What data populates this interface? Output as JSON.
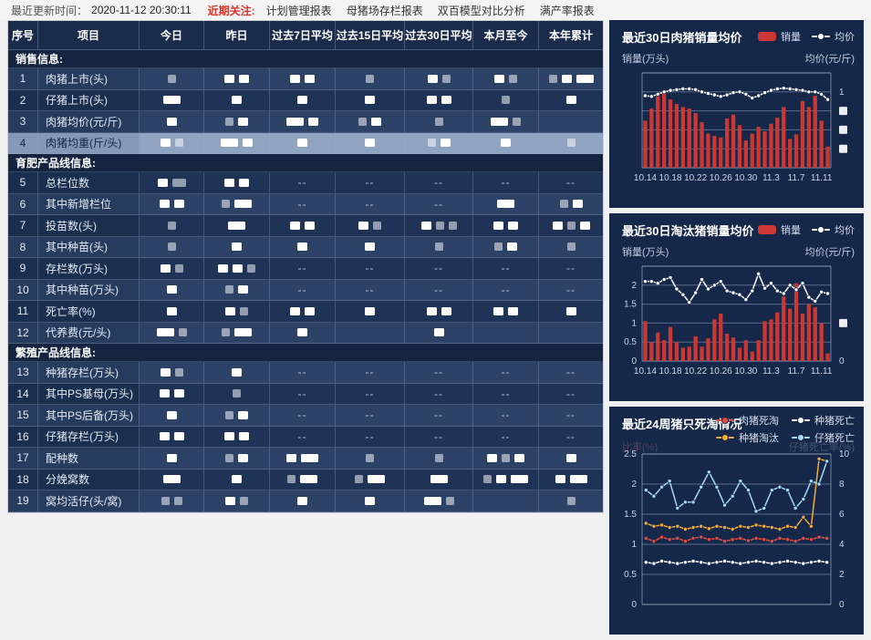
{
  "topbar": {
    "update_label": "最近更新时间：",
    "update_time": "2020-11-12 20:30:11",
    "focus_label": "近期关注:",
    "links": [
      "计划管理报表",
      "母猪场存栏报表",
      "双百模型对比分析",
      "满产率报表"
    ]
  },
  "table": {
    "headers": [
      "序号",
      "项目",
      "今日",
      "昨日",
      "过去7日平均",
      "过去15日平均",
      "过去30日平均",
      "本月至今",
      "本年累计"
    ],
    "sections": [
      {
        "title": "销售信息:",
        "rows": [
          {
            "no": "1",
            "name": "肉猪上市(头)",
            "tone": "light",
            "cells": [
              "g",
              "bb",
              "bb",
              "g",
              "bg",
              "bg",
              "gbB"
            ]
          },
          {
            "no": "2",
            "name": "仔猪上市(头)",
            "tone": "dark",
            "cells": [
              "B",
              "b",
              "b",
              "b",
              "bb",
              "g",
              "b"
            ]
          },
          {
            "no": "3",
            "name": "肉猪均价(元/斤)",
            "tone": "light",
            "cells": [
              "b",
              "gb",
              "Bb",
              "gb",
              "g",
              "Bg",
              ""
            ]
          },
          {
            "no": "4",
            "name": "肉猪均重(斤/头)",
            "tone": "sel",
            "selected": true,
            "cells": [
              "bg",
              "Bb",
              "b",
              "b",
              "gb",
              "b",
              "g"
            ]
          }
        ]
      },
      {
        "title": "育肥产品线信息:",
        "rows": [
          {
            "no": "5",
            "name": "总栏位数",
            "tone": "dark",
            "cells": [
              "bG",
              "bb",
              "--",
              "--",
              "--",
              "--",
              "--"
            ]
          },
          {
            "no": "6",
            "name": "其中新增栏位",
            "tone": "light",
            "cells": [
              "bb",
              "gB",
              "--",
              "--",
              "--",
              "B",
              "gb"
            ]
          },
          {
            "no": "7",
            "name": "投苗数(头)",
            "tone": "dark",
            "cells": [
              "g",
              "B",
              "bb",
              "bg",
              "bgg",
              "bb",
              "bgb"
            ]
          },
          {
            "no": "8",
            "name": "其中种苗(头)",
            "tone": "light",
            "cells": [
              "g",
              "b",
              "b",
              "b",
              "g",
              "gb",
              "g"
            ]
          },
          {
            "no": "9",
            "name": "存栏数(万头)",
            "tone": "dark",
            "cells": [
              "bg",
              "bbg",
              "--",
              "--",
              "--",
              "--",
              "--"
            ]
          },
          {
            "no": "10",
            "name": "其中种苗(万头)",
            "tone": "light",
            "cells": [
              "b",
              "gb",
              "--",
              "--",
              "--",
              "--",
              "--"
            ]
          },
          {
            "no": "11",
            "name": "死亡率(%)",
            "tone": "dark",
            "cells": [
              "b",
              "bg",
              "bb",
              "b",
              "bb",
              "bb",
              "b"
            ]
          },
          {
            "no": "12",
            "name": "代养费(元/头)",
            "tone": "light",
            "cells": [
              "Bg",
              "gB",
              "b",
              "",
              "b",
              "",
              ""
            ]
          }
        ]
      },
      {
        "title": "繁殖产品线信息:",
        "rows": [
          {
            "no": "13",
            "name": "种猪存栏(万头)",
            "tone": "light",
            "cells": [
              "bg",
              "b",
              "--",
              "--",
              "--",
              "--",
              "--"
            ]
          },
          {
            "no": "14",
            "name": "其中PS基母(万头)",
            "tone": "dark",
            "cells": [
              "bb",
              "g",
              "--",
              "--",
              "--",
              "--",
              "--"
            ]
          },
          {
            "no": "15",
            "name": "其中PS后备(万头)",
            "tone": "light",
            "cells": [
              "b",
              "gb",
              "--",
              "--",
              "--",
              "--",
              "--"
            ]
          },
          {
            "no": "16",
            "name": "仔猪存栏(万头)",
            "tone": "dark",
            "cells": [
              "bb",
              "bb",
              "--",
              "--",
              "--",
              "--",
              "--"
            ]
          },
          {
            "no": "17",
            "name": "配种数",
            "tone": "light",
            "cells": [
              "b",
              "gb",
              "bB",
              "g",
              "g",
              "bgb",
              "b"
            ]
          },
          {
            "no": "18",
            "name": "分娩窝数",
            "tone": "dark",
            "cells": [
              "B",
              "b",
              "gB",
              "gB",
              "B",
              "gbB",
              "bB"
            ]
          },
          {
            "no": "19",
            "name": "窝均活仔(头/窝)",
            "tone": "light",
            "cells": [
              "gg",
              "bg",
              "b",
              "b",
              "Bg",
              "",
              "g"
            ]
          }
        ]
      }
    ]
  },
  "chart_data": [
    {
      "type": "bar",
      "title": "最近30日肉猪销量均价",
      "legend": [
        {
          "label": "销量",
          "shape": "bar",
          "color": "#cb3732"
        },
        {
          "label": "均价",
          "shape": "line",
          "color": "#ffffff"
        }
      ],
      "unit_left": "销量(万头)",
      "unit_right": "均价(元/斤)",
      "x_labels": [
        "10.14",
        "10.18",
        "10.22",
        "10.26",
        "10.30",
        "11.3",
        "11.7",
        "11.11"
      ],
      "x_label_idx": [
        0,
        4,
        8,
        12,
        16,
        20,
        24,
        28
      ],
      "y_max": 1.25,
      "grid_step": 0.25,
      "left_ticks": [
        "",
        "",
        "",
        "",
        "",
        ""
      ],
      "right_ticks": [
        "",
        "1",
        "▓",
        "▓",
        "▓",
        ""
      ],
      "bar_color": "#cb3732",
      "line_color": "#ffffff",
      "bars": [
        0.62,
        0.78,
        0.97,
        1.02,
        0.9,
        0.84,
        0.8,
        0.78,
        0.72,
        0.6,
        0.45,
        0.42,
        0.4,
        0.65,
        0.7,
        0.56,
        0.36,
        0.45,
        0.54,
        0.48,
        0.58,
        0.66,
        0.8,
        0.38,
        0.44,
        0.88,
        0.8,
        0.95,
        0.62,
        0.28
      ],
      "line": [
        0.95,
        0.94,
        0.97,
        1.0,
        1.02,
        1.03,
        1.04,
        1.04,
        1.03,
        1.0,
        0.98,
        0.96,
        0.94,
        0.96,
        0.99,
        1.0,
        0.97,
        0.92,
        0.95,
        0.99,
        1.02,
        1.04,
        1.05,
        1.04,
        1.03,
        1.02,
        1.0,
        1.0,
        0.97,
        0.9
      ],
      "note": "左右坐标轴数值部分被打码遮挡"
    },
    {
      "type": "bar",
      "title": "最近30日淘汰猪销量均价",
      "legend": [
        {
          "label": "销量",
          "shape": "bar",
          "color": "#cb3732"
        },
        {
          "label": "均价",
          "shape": "line",
          "color": "#ffffff"
        }
      ],
      "unit_left": "销量(万头)",
      "unit_right": "均价(元/斤)",
      "x_labels": [
        "10.14",
        "10.18",
        "10.22",
        "10.26",
        "10.30",
        "11.3",
        "11.7",
        "11.11"
      ],
      "x_label_idx": [
        0,
        4,
        8,
        12,
        16,
        20,
        24,
        28
      ],
      "y_max": 2.5,
      "grid_step": 0.5,
      "left_ticks": [
        "",
        "2",
        "1.5",
        "1",
        "0.5",
        "0"
      ],
      "right_ticks": [
        "",
        "",
        "",
        "▓",
        "",
        "0"
      ],
      "bar_color": "#cb3732",
      "line_color": "#ffffff",
      "bars": [
        1.05,
        0.5,
        0.75,
        0.55,
        0.9,
        0.5,
        0.35,
        0.38,
        0.65,
        0.38,
        0.6,
        1.1,
        1.25,
        0.72,
        0.62,
        0.35,
        0.55,
        0.25,
        0.55,
        1.05,
        1.1,
        1.28,
        1.7,
        1.38,
        2.05,
        1.25,
        1.5,
        1.42,
        1.0,
        0.2
      ],
      "line": [
        2.1,
        2.1,
        2.05,
        2.15,
        2.2,
        1.9,
        1.75,
        1.55,
        1.8,
        2.15,
        1.9,
        2.0,
        2.1,
        1.85,
        1.8,
        1.75,
        1.62,
        1.85,
        2.3,
        1.92,
        2.05,
        1.85,
        1.78,
        2.0,
        1.88,
        2.05,
        1.68,
        1.58,
        1.82,
        1.78
      ]
    },
    {
      "type": "line",
      "title": "最近24周猪只死淘情况",
      "legend": [
        {
          "label": "肉猪死淘",
          "shape": "line",
          "color": "#e34d42"
        },
        {
          "label": "种猪死亡",
          "shape": "line",
          "color": "#ffffff"
        },
        {
          "label": "种猪淘汰",
          "shape": "line",
          "color": "#f2aa3c"
        },
        {
          "label": "仔猪死亡",
          "shape": "line",
          "color": "#a6d8f7"
        }
      ],
      "unit_left": "比率(%)",
      "unit_right": "仔猪死亡率(%)",
      "x_labels": [],
      "x_label_idx": [],
      "y_max": 2.5,
      "grid_step": 0.5,
      "left_ticks": [
        "2.5",
        "2",
        "1.5",
        "1",
        "0.5",
        "0"
      ],
      "right_ticks": [
        "10",
        "8",
        "6",
        "4",
        "2",
        "0"
      ],
      "series": [
        {
          "name": "肉猪死淘",
          "color": "#e34d42",
          "values": [
            1.1,
            1.05,
            1.12,
            1.08,
            1.1,
            1.05,
            1.1,
            1.12,
            1.08,
            1.1,
            1.05,
            1.08,
            1.1,
            1.06,
            1.1,
            1.08,
            1.05,
            1.1,
            1.08,
            1.05,
            1.1,
            1.08,
            1.12,
            1.1
          ]
        },
        {
          "name": "种猪死亡",
          "color": "#ffffff",
          "values": [
            0.7,
            0.68,
            0.72,
            0.7,
            0.68,
            0.7,
            0.72,
            0.7,
            0.68,
            0.7,
            0.72,
            0.7,
            0.68,
            0.7,
            0.72,
            0.7,
            0.68,
            0.7,
            0.72,
            0.7,
            0.68,
            0.7,
            0.72,
            0.7
          ]
        },
        {
          "name": "种猪淘汰",
          "color": "#f2aa3c",
          "values": [
            1.35,
            1.3,
            1.32,
            1.28,
            1.3,
            1.25,
            1.28,
            1.3,
            1.26,
            1.3,
            1.28,
            1.25,
            1.3,
            1.28,
            1.32,
            1.3,
            1.28,
            1.25,
            1.3,
            1.28,
            1.45,
            1.3,
            2.42,
            2.38
          ]
        },
        {
          "name": "仔猪死亡",
          "color": "#a6d8f7",
          "values": [
            1.9,
            1.8,
            1.95,
            2.05,
            1.6,
            1.7,
            1.7,
            1.95,
            2.2,
            1.95,
            1.65,
            1.8,
            2.05,
            1.9,
            1.55,
            1.6,
            1.9,
            1.95,
            1.9,
            1.6,
            1.75,
            2.05,
            2.0,
            2.38
          ]
        }
      ],
      "note": "图表底部被窗口裁切"
    }
  ]
}
